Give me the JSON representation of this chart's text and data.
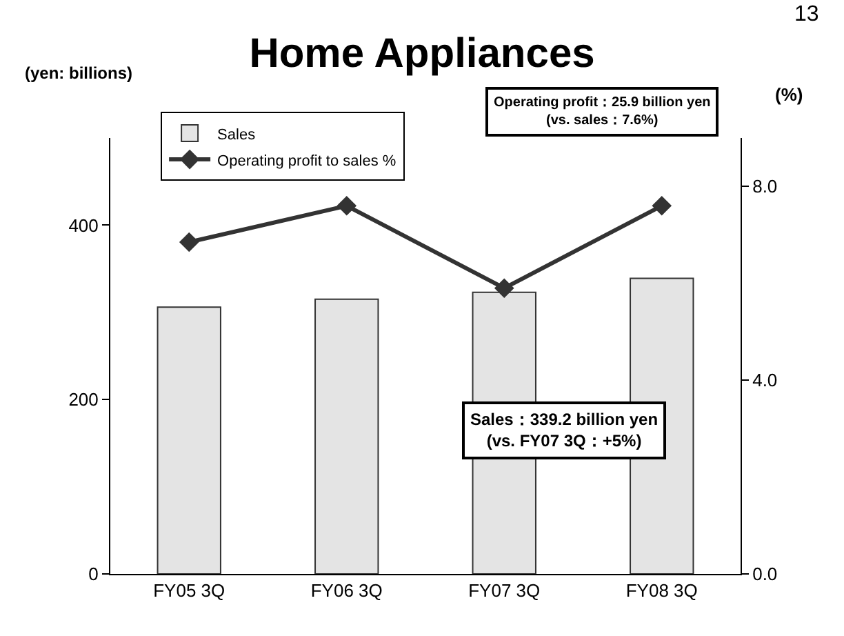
{
  "chart_data": {
    "type": "bar",
    "title": "Home Appliances",
    "ylabel": "(yen: billions)",
    "y2label": "(%)",
    "categories": [
      "FY05 3Q",
      "FY06 3Q",
      "FY07 3Q",
      "FY08 3Q"
    ],
    "series": [
      {
        "name": "Sales",
        "color": "#e4e4e4",
        "values": [
          306,
          315,
          323,
          339
        ]
      },
      {
        "name": "Operating profit to sales %",
        "type": "line",
        "axis": "y2",
        "color": "#333333",
        "marker": "diamond",
        "values": [
          6.85,
          7.6,
          5.9,
          7.6
        ]
      }
    ],
    "ylim": [
      0,
      500
    ],
    "yticks": [
      0,
      200,
      400
    ],
    "y2lim": [
      0,
      9
    ],
    "y2ticks": [
      {
        "value": 0,
        "label": "0.0"
      },
      {
        "value": 4,
        "label": "4.0"
      },
      {
        "value": 8,
        "label": "8.0"
      }
    ],
    "legend": "top left",
    "annotations": [
      "13",
      "Operating profit：25.9 billion yen\n(vs. sales：7.6%)",
      "Sales：339.2 billion yen\n(vs. FY07 3Q：+5%)"
    ]
  }
}
